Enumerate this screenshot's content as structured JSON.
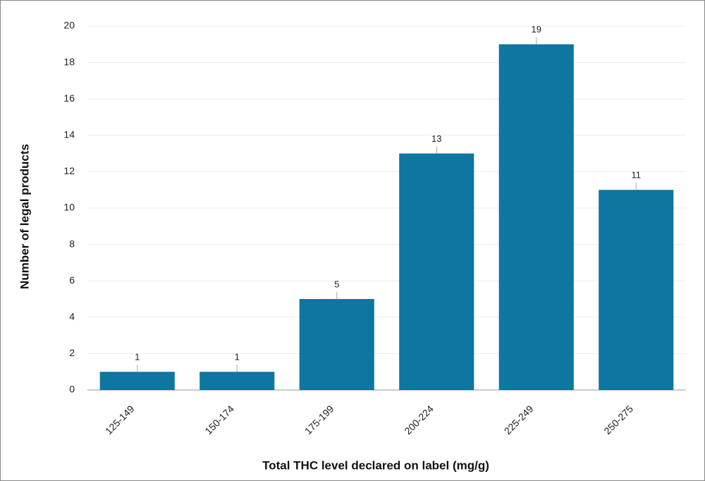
{
  "chart_data": {
    "type": "bar",
    "categories": [
      "125-149",
      "150-174",
      "175-199",
      "200-224",
      "225-249",
      "250-275"
    ],
    "values": [
      1,
      1,
      5,
      13,
      19,
      11
    ],
    "color": "#0e76a0",
    "xlabel": "Total THC level declared on label (mg/g)",
    "ylabel": "Number of legal products",
    "ylim": [
      0,
      20
    ],
    "yticks": [
      0,
      2,
      4,
      6,
      8,
      10,
      12,
      14,
      16,
      18,
      20
    ],
    "grid": true
  }
}
